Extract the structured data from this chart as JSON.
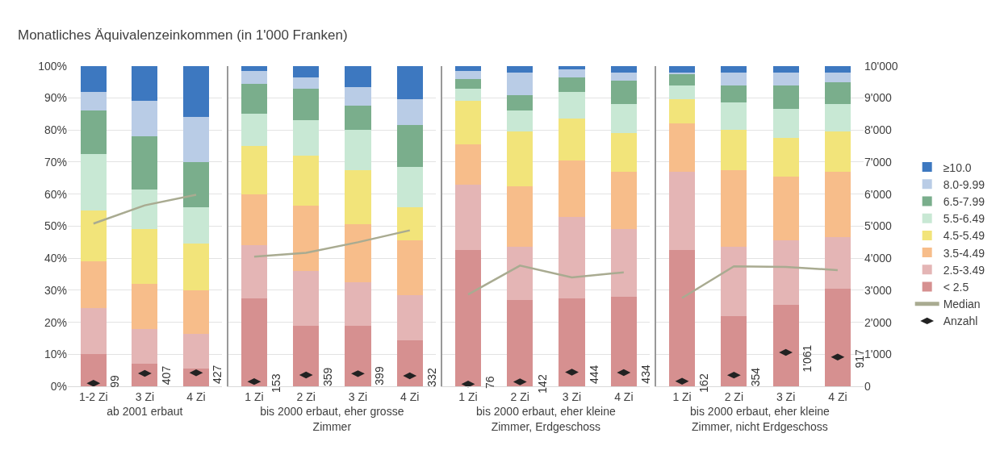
{
  "chart_data": [
    {
      "type": "bar",
      "stacked": true,
      "title": "Monatliches Äquivalenzeinkommen (in 1'000 Franken)",
      "xlabel": "ab 2001 erbaut",
      "categories": [
        "1-2 Zi",
        "3 Zi",
        "4 Zi"
      ],
      "ylim": [
        0,
        100
      ],
      "yticks": [
        {
          "value": 0,
          "label": "0%"
        },
        {
          "value": 10,
          "label": "10%"
        },
        {
          "value": 20,
          "label": "20%"
        },
        {
          "value": 30,
          "label": "30%"
        },
        {
          "value": 40,
          "label": "40%"
        },
        {
          "value": 50,
          "label": "50%"
        },
        {
          "value": 60,
          "label": "60%"
        },
        {
          "value": 70,
          "label": "70%"
        },
        {
          "value": 80,
          "label": "80%"
        },
        {
          "value": 90,
          "label": "90%"
        },
        {
          "value": 100,
          "label": "100%"
        }
      ],
      "y2lim": [
        0,
        10000
      ],
      "tick_labels": [
        "x",
        "y"
      ],
      "grid": "y",
      "legend": "right",
      "series": [
        {
          "name": "< 2.5",
          "color": "#d69090",
          "values": [
            10,
            7,
            5.5
          ]
        },
        {
          "name": "2.5-3.49",
          "color": "#e4b5b5",
          "values": [
            14.5,
            11,
            11
          ]
        },
        {
          "name": "3.5-4.49",
          "color": "#f7bd8a",
          "values": [
            14.5,
            14,
            13.5
          ]
        },
        {
          "name": "4.5-5.49",
          "color": "#f2e47a",
          "values": [
            16,
            17,
            14.5
          ]
        },
        {
          "name": "5.5-6.49",
          "color": "#c8e8d4",
          "values": [
            17.5,
            12.5,
            11.5
          ]
        },
        {
          "name": "6.5-7.99",
          "color": "#7aae8c",
          "values": [
            13.5,
            16.5,
            14
          ]
        },
        {
          "name": "8.0-9.99",
          "color": "#b9cce6",
          "values": [
            6,
            11,
            14
          ]
        },
        {
          "name": "≥10.0",
          "color": "#3d78c0",
          "values": [
            8,
            11,
            16
          ]
        },
        {
          "name": "Median",
          "type": "line",
          "axis": "y2",
          "color": "#a9ab91",
          "values": [
            5080,
            5650,
            5980
          ]
        },
        {
          "name": "Anzahl",
          "type": "scatter",
          "marker": "diamond",
          "axis": "y2",
          "color": "#222222",
          "values": [
            99,
            407,
            427
          ],
          "value_labels": [
            "99",
            "407",
            "427"
          ]
        }
      ]
    },
    {
      "type": "bar",
      "stacked": true,
      "xlabel": "bis 2000 erbaut, eher grosse Zimmer",
      "categories": [
        "1 Zi",
        "2 Zi",
        "3 Zi",
        "4 Zi"
      ],
      "ylim": [
        0,
        100
      ],
      "y2lim": [
        0,
        10000
      ],
      "tick_labels": "x",
      "grid": "y",
      "legend": "right",
      "series": [
        {
          "name": "< 2.5",
          "color": "#d69090",
          "values": [
            27.5,
            19,
            19,
            14.5
          ]
        },
        {
          "name": "2.5-3.49",
          "color": "#e4b5b5",
          "values": [
            16.5,
            17,
            13.5,
            14
          ]
        },
        {
          "name": "3.5-4.49",
          "color": "#f7bd8a",
          "values": [
            16,
            20.5,
            18,
            17
          ]
        },
        {
          "name": "4.5-5.49",
          "color": "#f2e47a",
          "values": [
            15,
            15.5,
            17,
            10.5
          ]
        },
        {
          "name": "5.5-6.49",
          "color": "#c8e8d4",
          "values": [
            10,
            11,
            12.5,
            12.5
          ]
        },
        {
          "name": "6.5-7.99",
          "color": "#7aae8c",
          "values": [
            9.5,
            10,
            7.5,
            13
          ]
        },
        {
          "name": "8.0-9.99",
          "color": "#b9cce6",
          "values": [
            4,
            3.5,
            6,
            8
          ]
        },
        {
          "name": "≥10.0",
          "color": "#3d78c0",
          "values": [
            1.5,
            3.5,
            6.5,
            10.5
          ]
        },
        {
          "name": "Median",
          "type": "line",
          "axis": "y2",
          "color": "#a9ab91",
          "values": [
            4050,
            4170,
            4500,
            4870
          ]
        },
        {
          "name": "Anzahl",
          "type": "scatter",
          "marker": "diamond",
          "axis": "y2",
          "color": "#222222",
          "values": [
            153,
            359,
            399,
            332
          ],
          "value_labels": [
            "153",
            "359",
            "399",
            "332"
          ]
        }
      ]
    },
    {
      "type": "bar",
      "stacked": true,
      "xlabel": "bis 2000 erbaut, eher kleine Zimmer, Erdgeschoss",
      "categories": [
        "1 Zi",
        "2 Zi",
        "3 Zi",
        "4 Zi"
      ],
      "ylim": [
        0,
        100
      ],
      "y2lim": [
        0,
        10000
      ],
      "tick_labels": "x",
      "grid": "y",
      "legend": "right",
      "series": [
        {
          "name": "< 2.5",
          "color": "#d69090",
          "values": [
            42.5,
            27,
            27.5,
            28
          ]
        },
        {
          "name": "2.5-3.49",
          "color": "#e4b5b5",
          "values": [
            20.5,
            16.5,
            25.5,
            21
          ]
        },
        {
          "name": "3.5-4.49",
          "color": "#f7bd8a",
          "values": [
            12.5,
            19,
            17.5,
            18
          ]
        },
        {
          "name": "4.5-5.49",
          "color": "#f2e47a",
          "values": [
            13.5,
            17,
            13,
            12
          ]
        },
        {
          "name": "5.5-6.49",
          "color": "#c8e8d4",
          "values": [
            4,
            6.5,
            8.5,
            9
          ]
        },
        {
          "name": "6.5-7.99",
          "color": "#7aae8c",
          "values": [
            3,
            5,
            4.5,
            7.5
          ]
        },
        {
          "name": "8.0-9.99",
          "color": "#b9cce6",
          "values": [
            2.5,
            7,
            2.5,
            2.5
          ]
        },
        {
          "name": "≥10.0",
          "color": "#3d78c0",
          "values": [
            1.5,
            2,
            1,
            2
          ]
        },
        {
          "name": "Median",
          "type": "line",
          "axis": "y2",
          "color": "#a9ab91",
          "values": [
            2870,
            3770,
            3400,
            3560
          ]
        },
        {
          "name": "Anzahl",
          "type": "scatter",
          "marker": "diamond",
          "axis": "y2",
          "color": "#222222",
          "values": [
            76,
            142,
            444,
            434
          ],
          "value_labels": [
            "76",
            "142",
            "444",
            "434"
          ]
        }
      ]
    },
    {
      "type": "bar",
      "stacked": true,
      "xlabel": "bis 2000 erbaut, eher kleine Zimmer, nicht Erdgeschoss",
      "categories": [
        "1 Zi",
        "2 Zi",
        "3 Zi",
        "4 Zi"
      ],
      "ylim": [
        0,
        100
      ],
      "y2lim": [
        0,
        10000
      ],
      "y2ticks": [
        0,
        {
          "value": 1000,
          "label": "1'000"
        },
        {
          "value": 2000,
          "label": "2'000"
        },
        {
          "value": 3000,
          "label": "3'000"
        },
        {
          "value": 4000,
          "label": "4'000"
        },
        {
          "value": 5000,
          "label": "5'000"
        },
        {
          "value": 6000,
          "label": "6'000"
        },
        {
          "value": 7000,
          "label": "7'000"
        },
        {
          "value": 8000,
          "label": "8'000"
        },
        {
          "value": 9000,
          "label": "9'000"
        },
        {
          "value": 10000,
          "label": "10'000"
        }
      ],
      "tick_labels": [
        "x",
        "y2"
      ],
      "grid": "y",
      "legend": "right",
      "series": [
        {
          "name": "< 2.5",
          "color": "#d69090",
          "values": [
            42.5,
            22,
            25.5,
            30.5
          ]
        },
        {
          "name": "2.5-3.49",
          "color": "#e4b5b5",
          "values": [
            24.5,
            21.5,
            20,
            16
          ]
        },
        {
          "name": "3.5-4.49",
          "color": "#f7bd8a",
          "values": [
            15,
            24,
            20,
            20.5
          ]
        },
        {
          "name": "4.5-5.49",
          "color": "#f2e47a",
          "values": [
            7.5,
            12.5,
            12,
            12.5
          ]
        },
        {
          "name": "5.5-6.49",
          "color": "#c8e8d4",
          "values": [
            4.5,
            8.5,
            9,
            8.5
          ]
        },
        {
          "name": "6.5-7.99",
          "color": "#7aae8c",
          "values": [
            3.5,
            5.5,
            7.5,
            7
          ]
        },
        {
          "name": "8.0-9.99",
          "color": "#b9cce6",
          "values": [
            0.5,
            4,
            4,
            3
          ]
        },
        {
          "name": "≥10.0",
          "color": "#3d78c0",
          "values": [
            2,
            2,
            2,
            2
          ]
        },
        {
          "name": "Median",
          "type": "line",
          "axis": "y2",
          "color": "#a9ab91",
          "values": [
            2760,
            3750,
            3730,
            3630
          ]
        },
        {
          "name": "Anzahl",
          "type": "scatter",
          "marker": "diamond",
          "axis": "y2",
          "color": "#222222",
          "values": [
            162,
            354,
            1061,
            917
          ],
          "value_labels": [
            "162",
            "354",
            "1'061",
            "917"
          ]
        }
      ]
    }
  ]
}
